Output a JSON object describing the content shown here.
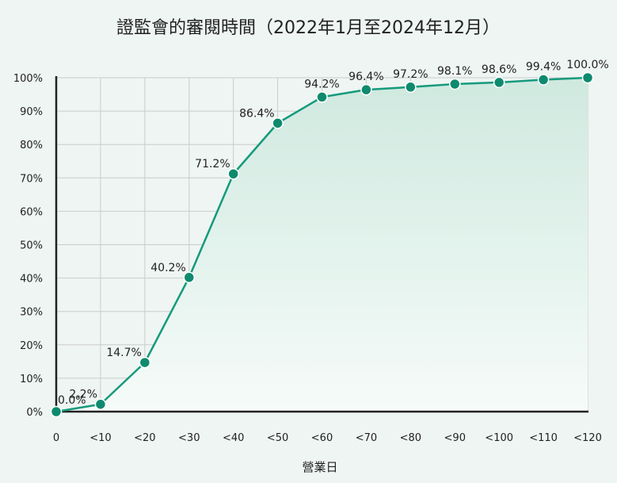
{
  "chart_data": {
    "type": "line",
    "title": "證監會的審閱時間（2022年1月至2024年12月）",
    "xlabel": "營業日",
    "ylabel": "",
    "categories": [
      "0",
      "<10",
      "<20",
      "<30",
      "<40",
      "<50",
      "<60",
      "<70",
      "<80",
      "<90",
      "<100",
      "<110",
      "<120"
    ],
    "y_ticks": [
      "0%",
      "10%",
      "20%",
      "30%",
      "40%",
      "50%",
      "60%",
      "70%",
      "80%",
      "90%",
      "100%"
    ],
    "ylim": [
      0,
      100
    ],
    "grid": true,
    "area_fill": true,
    "series": [
      {
        "values": [
          0.0,
          2.2,
          14.7,
          40.2,
          71.2,
          86.4,
          94.2,
          96.4,
          97.2,
          98.1,
          98.6,
          99.4,
          100.0
        ],
        "labels": [
          "0.0%",
          "2.2%",
          "14.7%",
          "40.2%",
          "71.2%",
          "86.4%",
          "94.2%",
          "96.4%",
          "97.2%",
          "98.1%",
          "98.6%",
          "99.4%",
          "100.0%"
        ]
      }
    ],
    "colors": {
      "line": "#159a7c",
      "marker": "#0e8a6e",
      "marker_stroke": "#ffffff",
      "fill_top": "#cfe9df",
      "fill_bottom": "#f6fbf9",
      "grid": "#cccccc",
      "axis": "#222222",
      "text": "#222222"
    }
  }
}
